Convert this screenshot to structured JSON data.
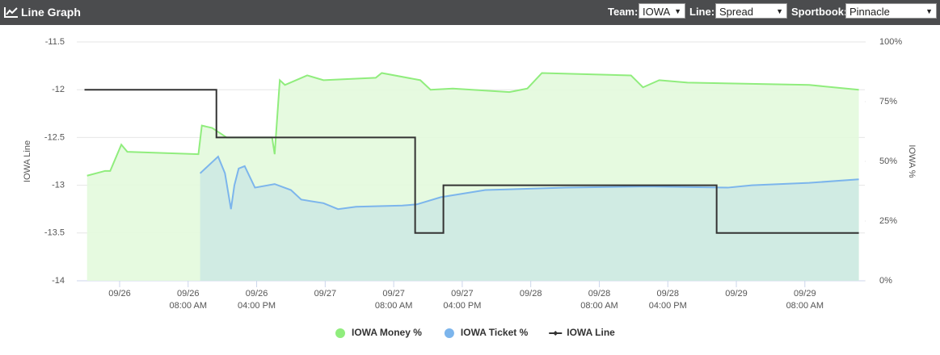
{
  "header": {
    "title": "Line Graph",
    "controls": [
      {
        "label": "Team:",
        "value": "IOWA"
      },
      {
        "label": "Line:",
        "value": "Spread"
      },
      {
        "label": "Sportbook:",
        "value": "Pinnacle"
      }
    ]
  },
  "chart_data": {
    "type": "line",
    "y_label": "IOWA Line",
    "y2_label": "IOWA %",
    "xlim": [
      -5,
      87
    ],
    "xticks": [
      {
        "value": 0,
        "label": "09/26"
      },
      {
        "value": 8,
        "label": "09/26",
        "sublabel": "08:00 AM"
      },
      {
        "value": 16,
        "label": "09/26",
        "sublabel": "04:00 PM"
      },
      {
        "value": 24,
        "label": "09/27"
      },
      {
        "value": 32,
        "label": "09/27",
        "sublabel": "08:00 AM"
      },
      {
        "value": 40,
        "label": "09/27",
        "sublabel": "04:00 PM"
      },
      {
        "value": 48,
        "label": "09/28"
      },
      {
        "value": 56,
        "label": "09/28",
        "sublabel": "08:00 AM"
      },
      {
        "value": 64,
        "label": "09/28",
        "sublabel": "04:00 PM"
      },
      {
        "value": 72,
        "label": "09/29"
      },
      {
        "value": 80,
        "label": "09/29",
        "sublabel": "08:00 AM"
      }
    ],
    "ylim": [
      -14,
      -11.5
    ],
    "yticks": [
      -14,
      -13.5,
      -13,
      -12.5,
      -12,
      -11.5
    ],
    "y2lim": [
      0,
      100
    ],
    "y2ticks": [
      {
        "value": 0,
        "label": "0%"
      },
      {
        "value": 25,
        "label": "25%"
      },
      {
        "value": 50,
        "label": "50%"
      },
      {
        "value": 75,
        "label": "75%"
      },
      {
        "value": 100,
        "label": "100%"
      }
    ],
    "grid": true,
    "series": [
      {
        "name": "IOWA Money %",
        "color": "#90ed7d",
        "fill": "#e3fadd",
        "axis": "y2",
        "marker": "circle",
        "x": [
          -3.8,
          -1.7,
          -1.1,
          0.2,
          0.9,
          9.2,
          9.6,
          10.8,
          12.5,
          17.8,
          18.1,
          18.7,
          19.3,
          21.9,
          23.8,
          29.9,
          30.6,
          35.1,
          36.3,
          38.9,
          45.5,
          47.6,
          49.3,
          59.7,
          61.1,
          63.0,
          66.3,
          80.5,
          86.3
        ],
        "values": [
          44,
          46,
          46,
          57,
          54,
          53,
          65,
          64,
          60,
          60,
          53,
          84,
          82,
          86,
          84,
          85,
          87,
          84,
          80,
          80.5,
          79,
          80.5,
          87,
          86,
          81,
          84,
          83,
          82,
          80
        ]
      },
      {
        "name": "IOWA Ticket %",
        "color": "#7cb5ec",
        "fill": "#cde9e3",
        "axis": "y2",
        "marker": "circle",
        "x": [
          9.4,
          11.5,
          12.3,
          13.0,
          13.4,
          13.9,
          14.6,
          15.8,
          18.1,
          20.0,
          21.2,
          23.8,
          25.5,
          27.6,
          33.0,
          34.7,
          37.5,
          42.7,
          52.1,
          61.6,
          71.0,
          73.8,
          80.5,
          86.3
        ],
        "values": [
          45,
          52,
          45,
          30,
          40,
          47,
          48,
          39,
          40.5,
          38,
          34,
          32.5,
          30,
          31,
          31.5,
          32,
          35,
          38,
          39,
          39.5,
          39,
          40,
          41,
          42.5
        ]
      },
      {
        "name": "IOWA Line",
        "color": "#333333",
        "axis": "y",
        "marker": "diamond",
        "x": [
          -4.1,
          11.3,
          11.3,
          34.5,
          34.5,
          37.8,
          37.8,
          69.7,
          69.7,
          86.3
        ],
        "values": [
          -12,
          -12,
          -12.5,
          -12.5,
          -13.5,
          -13.5,
          -13,
          -13,
          -13.5,
          -13.5
        ]
      }
    ]
  }
}
